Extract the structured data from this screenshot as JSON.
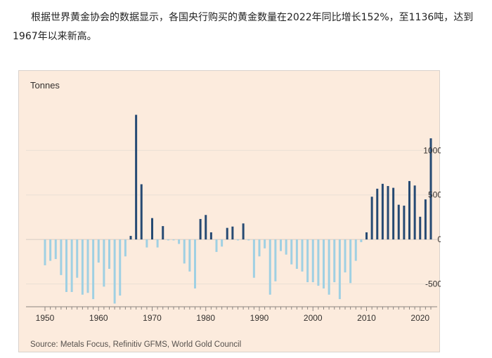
{
  "article": {
    "text": "根据世界黄金协会的数据显示，各国央行购买的黄金数量在2022年同比增长152%，至1136吨，达到1967年以来新高。"
  },
  "chart_data": {
    "type": "bar",
    "ylabel": "Tonnes",
    "source": "Source: Metals Focus, Refinitiv GFMS, World Gold Council",
    "ylim": [
      -740,
      1420
    ],
    "xlim": [
      1950,
      2022
    ],
    "yticks": [
      1000,
      500,
      0,
      -500
    ],
    "xticks": [
      1950,
      1960,
      1970,
      1980,
      1990,
      2000,
      2010,
      2020
    ],
    "grid": true,
    "colors": {
      "positive": "#264a73",
      "negative": "#9fd0e3"
    },
    "x": [
      1950,
      1951,
      1952,
      1953,
      1954,
      1955,
      1956,
      1957,
      1958,
      1959,
      1960,
      1961,
      1962,
      1963,
      1964,
      1965,
      1966,
      1967,
      1968,
      1969,
      1970,
      1971,
      1972,
      1973,
      1974,
      1975,
      1976,
      1977,
      1978,
      1979,
      1980,
      1981,
      1982,
      1983,
      1984,
      1985,
      1986,
      1987,
      1988,
      1989,
      1990,
      1991,
      1992,
      1993,
      1994,
      1995,
      1996,
      1997,
      1998,
      1999,
      2000,
      2001,
      2002,
      2003,
      2004,
      2005,
      2006,
      2007,
      2008,
      2009,
      2010,
      2011,
      2012,
      2013,
      2014,
      2015,
      2016,
      2017,
      2018,
      2019,
      2020,
      2021,
      2022
    ],
    "values": [
      -290,
      -240,
      -220,
      -400,
      -590,
      -590,
      -430,
      -620,
      -600,
      -670,
      -260,
      -530,
      -330,
      -720,
      -630,
      -190,
      40,
      1400,
      620,
      -90,
      240,
      -90,
      150,
      -10,
      -10,
      -50,
      -270,
      -360,
      -550,
      230,
      275,
      80,
      -140,
      -80,
      130,
      145,
      -10,
      180,
      -10,
      -430,
      -190,
      -100,
      -620,
      -470,
      -130,
      -170,
      -280,
      -330,
      -360,
      -480,
      -480,
      -520,
      -550,
      -620,
      -480,
      -670,
      -370,
      -490,
      -240,
      -30,
      80,
      480,
      570,
      625,
      600,
      580,
      390,
      380,
      656,
      606,
      255,
      450,
      1136
    ]
  }
}
